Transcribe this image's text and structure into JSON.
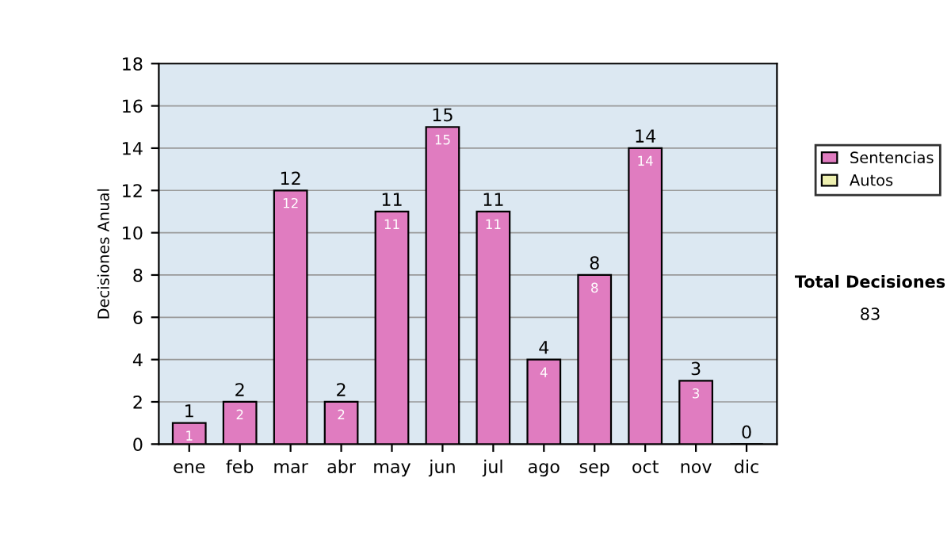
{
  "chart_data": {
    "type": "bar",
    "ylabel": "Decisiones Anual",
    "categories": [
      "ene",
      "feb",
      "mar",
      "abr",
      "may",
      "jun",
      "jul",
      "ago",
      "sep",
      "oct",
      "nov",
      "dic"
    ],
    "series": [
      {
        "name": "Sentencias",
        "color": "#e07cc0",
        "values": [
          1,
          2,
          12,
          2,
          11,
          15,
          11,
          4,
          8,
          14,
          3,
          0
        ],
        "value_labels": [
          "1",
          "2",
          "12",
          "2",
          "11",
          "15",
          "11",
          "4",
          "8",
          "14",
          "3",
          "0"
        ]
      },
      {
        "name": "Autos",
        "color": "#eef0b0",
        "values": [
          null,
          null,
          null,
          null,
          null,
          null,
          null,
          null,
          null,
          null,
          null,
          null
        ]
      }
    ],
    "ylim": [
      0,
      18
    ],
    "yticks": [
      0,
      2,
      4,
      6,
      8,
      10,
      12,
      14,
      16,
      18
    ],
    "grid": "y",
    "legend": "right",
    "annotations": [
      "Total Decisiones",
      "83",
      {
        "text": "1",
        "x": "ene",
        "y": 1
      },
      {
        "text": "2",
        "x": "feb",
        "y": 2
      },
      {
        "text": "12",
        "x": "mar",
        "y": 12
      },
      {
        "text": "2",
        "x": "abr",
        "y": 2
      },
      {
        "text": "11",
        "x": "may",
        "y": 11
      },
      {
        "text": "15",
        "x": "jun",
        "y": 15
      },
      {
        "text": "11",
        "x": "jul",
        "y": 11
      },
      {
        "text": "4",
        "x": "ago",
        "y": 4
      },
      {
        "text": "8",
        "x": "sep",
        "y": 8
      },
      {
        "text": "14",
        "x": "oct",
        "y": 14
      },
      {
        "text": "3",
        "x": "nov",
        "y": 3
      }
    ]
  }
}
